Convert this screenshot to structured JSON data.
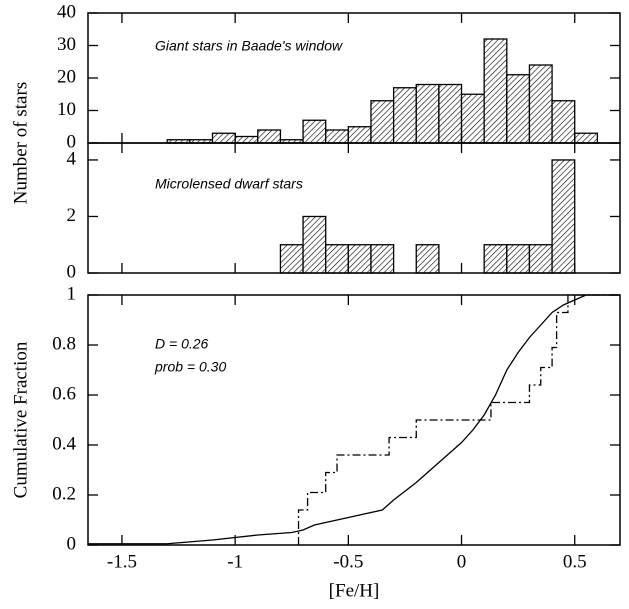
{
  "chart_data": [
    {
      "type": "histogram",
      "ylabel": "Number of stars",
      "annotation": "Giant stars in Baade's window",
      "bins": [
        -1.3,
        -1.2,
        -1.1,
        -1.0,
        -0.9,
        -0.8,
        -0.7,
        -0.6,
        -0.5,
        -0.4,
        -0.3,
        -0.2,
        -0.1,
        0,
        0.1,
        0.2,
        0.3,
        0.4,
        0.5,
        0.6
      ],
      "values": [
        1,
        1,
        3,
        2,
        4,
        1,
        7,
        4,
        5,
        13,
        17,
        18,
        18,
        15,
        32,
        21,
        24,
        13,
        3
      ],
      "color": "#000000",
      "xlim": [
        -1.65,
        0.7
      ],
      "xticks": [
        -1.5,
        -1,
        -0.5,
        0,
        0.5
      ],
      "ylim": [
        0,
        40
      ],
      "yticks": [
        0,
        10,
        20,
        30,
        40
      ]
    },
    {
      "type": "histogram",
      "annotation": "Microlensed dwarf stars",
      "bins": [
        -0.8,
        -0.7,
        -0.6,
        -0.5,
        -0.4,
        -0.3,
        -0.2,
        -0.1,
        0,
        0.1,
        0.2,
        0.3,
        0.4,
        0.5
      ],
      "values": [
        1,
        2,
        1,
        1,
        1,
        0,
        1,
        0,
        0,
        1,
        1,
        1,
        4
      ],
      "color": "#000000",
      "xlim": [
        -1.65,
        0.7
      ],
      "xticks": [
        -1.5,
        -1,
        -0.5,
        0,
        0.5
      ],
      "ylim": [
        0,
        4.6
      ],
      "yticks": [
        0,
        2,
        4
      ]
    },
    {
      "type": "line",
      "ylabel": "Cumulative Fraction",
      "xlabel": "[Fe/H]",
      "annotations": [
        "D = 0.26",
        "prob = 0.30"
      ],
      "xlim": [
        -1.65,
        0.7
      ],
      "xticks": [
        -1.5,
        -1,
        -0.5,
        0,
        0.5
      ],
      "ylim": [
        0,
        1
      ],
      "yticks": [
        0,
        0.2,
        0.4,
        0.6,
        0.8,
        1
      ],
      "series": [
        {
          "color": "#000000",
          "dash": "solid",
          "x": [
            -1.65,
            -1.3,
            -1.1,
            -0.9,
            -0.75,
            -0.7,
            -0.65,
            -0.55,
            -0.45,
            -0.35,
            -0.3,
            -0.2,
            -0.1,
            0,
            0.05,
            0.1,
            0.15,
            0.2,
            0.25,
            0.3,
            0.35,
            0.4,
            0.45,
            0.5,
            0.55,
            0.7
          ],
          "values": [
            0.005,
            0.005,
            0.02,
            0.04,
            0.05,
            0.06,
            0.08,
            0.1,
            0.12,
            0.14,
            0.18,
            0.25,
            0.33,
            0.41,
            0.46,
            0.52,
            0.6,
            0.7,
            0.77,
            0.83,
            0.88,
            0.93,
            0.96,
            0.98,
            1,
            1
          ]
        },
        {
          "color": "#000000",
          "dash": "dashdot",
          "x": [
            -0.72,
            -0.72,
            -0.68,
            -0.68,
            -0.6,
            -0.6,
            -0.55,
            -0.55,
            -0.32,
            -0.32,
            -0.2,
            -0.2,
            0.13,
            0.13,
            0.3,
            0.3,
            0.35,
            0.35,
            0.4,
            0.4,
            0.42,
            0.42,
            0.47,
            0.47,
            0.7
          ],
          "values": [
            0,
            0.14,
            0.14,
            0.21,
            0.21,
            0.29,
            0.29,
            0.36,
            0.36,
            0.43,
            0.43,
            0.5,
            0.5,
            0.57,
            0.57,
            0.64,
            0.64,
            0.71,
            0.71,
            0.79,
            0.79,
            0.93,
            0.93,
            1,
            1
          ]
        }
      ]
    }
  ]
}
